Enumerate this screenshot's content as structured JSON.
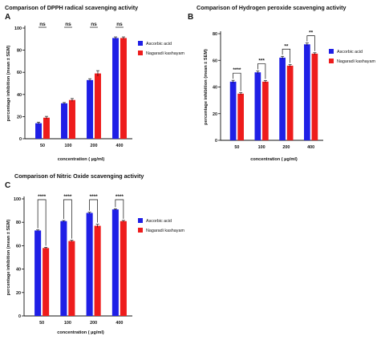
{
  "colors": {
    "ascorbic": "#1f1fe6",
    "nagaradi": "#ee1c1c",
    "axis": "#111111"
  },
  "chart_data": [
    {
      "panel_label": "A",
      "type": "bar",
      "title": "Comparison of DPPH radical scavenging activity",
      "xlabel": "concentration ( µg/ml)",
      "ylabel": "percentage inhibition (mean ± SEM)",
      "ylim": [
        0,
        100
      ],
      "yticks": [
        0,
        20,
        40,
        60,
        80,
        100
      ],
      "categories": [
        "50",
        "100",
        "200",
        "400"
      ],
      "series": [
        {
          "name": "Ascorbic acid",
          "values": [
            14,
            32,
            53,
            91
          ],
          "errors": [
            1,
            0.7,
            1.2,
            1
          ]
        },
        {
          "name": "Nagaradi kashayam",
          "values": [
            19,
            35,
            59,
            91
          ],
          "errors": [
            1.2,
            1.3,
            2.5,
            1
          ]
        }
      ],
      "significance": [
        "ns",
        "ns",
        "ns",
        "ns"
      ],
      "legend_position": "right"
    },
    {
      "panel_label": "B",
      "type": "bar",
      "title": "Comparison of Hydrogen peroxide scavenging activity",
      "xlabel": "concentration ( µg/ml)",
      "ylabel": "percentage inhibition (mean ± SEM)",
      "ylim": [
        0,
        80
      ],
      "yticks": [
        0,
        20,
        40,
        60,
        80
      ],
      "categories": [
        "50",
        "100",
        "200",
        "400"
      ],
      "series": [
        {
          "name": "Ascorbic acid",
          "values": [
            44,
            51,
            62,
            72
          ],
          "errors": [
            1,
            1,
            1,
            1
          ]
        },
        {
          "name": "Nagaradi kashayam",
          "values": [
            35,
            44,
            56,
            65
          ],
          "errors": [
            0.7,
            0.8,
            0.8,
            0.7
          ]
        }
      ],
      "significance": [
        "****",
        "***",
        "**",
        "**"
      ],
      "legend_position": "right"
    },
    {
      "panel_label": "C",
      "type": "bar",
      "title": "Comparison of Nitric Oxide scavenging activity",
      "xlabel": "concentration ( µg/ml)",
      "ylabel": "percentage inhibition (mean ± SEM)",
      "ylim": [
        0,
        100
      ],
      "yticks": [
        0,
        20,
        40,
        60,
        80,
        100
      ],
      "categories": [
        "50",
        "100",
        "200",
        "400"
      ],
      "series": [
        {
          "name": "Ascorbic acid",
          "values": [
            73,
            81,
            88,
            91
          ],
          "errors": [
            0.5,
            0.5,
            0.6,
            0.5
          ]
        },
        {
          "name": "Nagaradi kashayam",
          "values": [
            58,
            64,
            77,
            81
          ],
          "errors": [
            0.6,
            0.6,
            1.3,
            0.6
          ]
        }
      ],
      "significance": [
        "****",
        "****",
        "****",
        "****"
      ],
      "legend_position": "right"
    }
  ]
}
